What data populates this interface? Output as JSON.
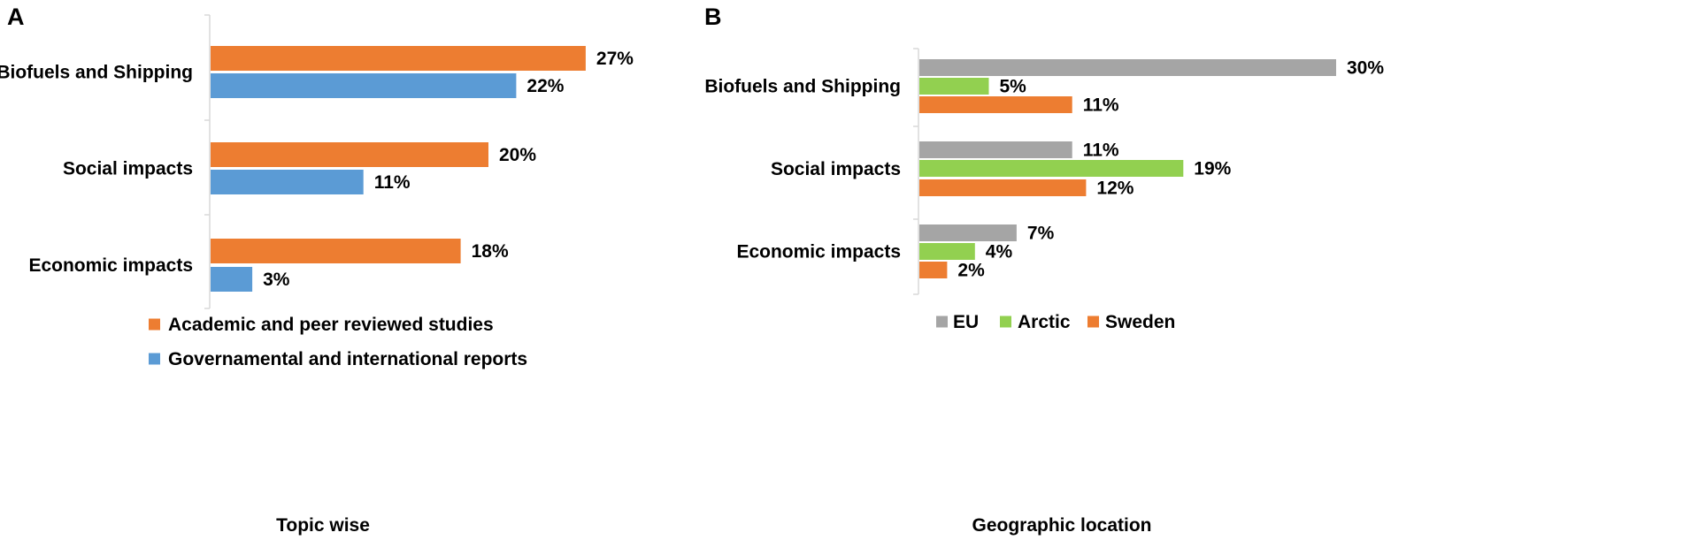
{
  "panels": {
    "A": {
      "letter": "A",
      "caption": "Topic wise"
    },
    "B": {
      "letter": "B",
      "caption": "Geographic location"
    }
  },
  "chart_data": [
    {
      "type": "bar",
      "orientation": "horizontal",
      "panel": "A",
      "title": "",
      "xlabel": "Topic wise",
      "ylabel": "",
      "categories": [
        "Biofuels and Shipping",
        "Social impacts",
        "Economic impacts"
      ],
      "series": [
        {
          "name": "Academic and peer reviewed studies",
          "color": "#ED7D31",
          "values": [
            27,
            20,
            18
          ]
        },
        {
          "name": "Governamental and international reports",
          "color": "#5B9BD5",
          "values": [
            22,
            11,
            3
          ]
        }
      ],
      "value_suffix": "%",
      "xlim": [
        0,
        30
      ],
      "legend_position": "bottom"
    },
    {
      "type": "bar",
      "orientation": "horizontal",
      "panel": "B",
      "title": "",
      "xlabel": "Geographic location",
      "ylabel": "",
      "categories": [
        "Biofuels and Shipping",
        "Social impacts",
        "Economic impacts"
      ],
      "series": [
        {
          "name": "EU",
          "color": "#A5A5A5",
          "values": [
            30,
            11,
            7
          ]
        },
        {
          "name": "Arctic",
          "color": "#92D050",
          "values": [
            5,
            19,
            4
          ]
        },
        {
          "name": "Sweden",
          "color": "#ED7D31",
          "values": [
            11,
            12,
            2
          ]
        }
      ],
      "value_suffix": "%",
      "xlim": [
        0,
        30
      ],
      "legend_position": "bottom"
    }
  ]
}
